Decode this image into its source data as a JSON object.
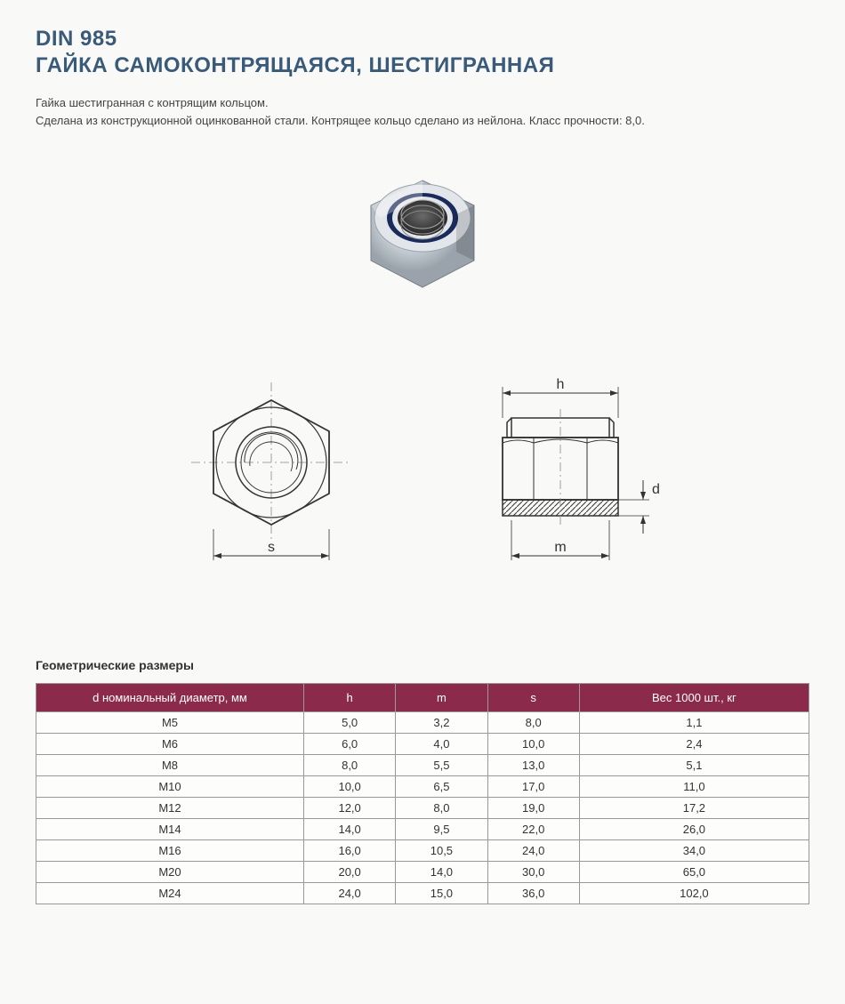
{
  "header": {
    "code": "DIN 985",
    "name": "ГАЙКА САМОКОНТРЯЩАЯСЯ, ШЕСТИГРАННАЯ"
  },
  "description": {
    "line1": "Гайка шестигранная с контрящим кольцом.",
    "line2": "Сделана из конструкционной оцинкованной стали. Контрящее кольцо сделано из нейлона. Класс прочности: 8,0."
  },
  "diagram": {
    "label_s": "s",
    "label_h": "h",
    "label_m": "m",
    "label_d": "d"
  },
  "section_title": "Геометрические размеры",
  "table": {
    "header_color": "#8b2a4a",
    "columns": [
      "d номинальный диаметр, мм",
      "h",
      "m",
      "s",
      "Вес 1000 шт., кг"
    ],
    "rows": [
      [
        "M5",
        "5,0",
        "3,2",
        "8,0",
        "1,1"
      ],
      [
        "M6",
        "6,0",
        "4,0",
        "10,0",
        "2,4"
      ],
      [
        "M8",
        "8,0",
        "5,5",
        "13,0",
        "5,1"
      ],
      [
        "M10",
        "10,0",
        "6,5",
        "17,0",
        "11,0"
      ],
      [
        "M12",
        "12,0",
        "8,0",
        "19,0",
        "17,2"
      ],
      [
        "M14",
        "14,0",
        "9,5",
        "22,0",
        "26,0"
      ],
      [
        "M16",
        "16,0",
        "10,5",
        "24,0",
        "34,0"
      ],
      [
        "M20",
        "20,0",
        "14,0",
        "30,0",
        "65,0"
      ],
      [
        "M24",
        "24,0",
        "15,0",
        "36,0",
        "102,0"
      ]
    ]
  },
  "colors": {
    "title": "#3a5a7a",
    "header_bg": "#8b2a4a",
    "border": "#999999",
    "nut_body": "#d8dde2",
    "nut_ring": "#1a2a5a",
    "thread": "#888888"
  }
}
